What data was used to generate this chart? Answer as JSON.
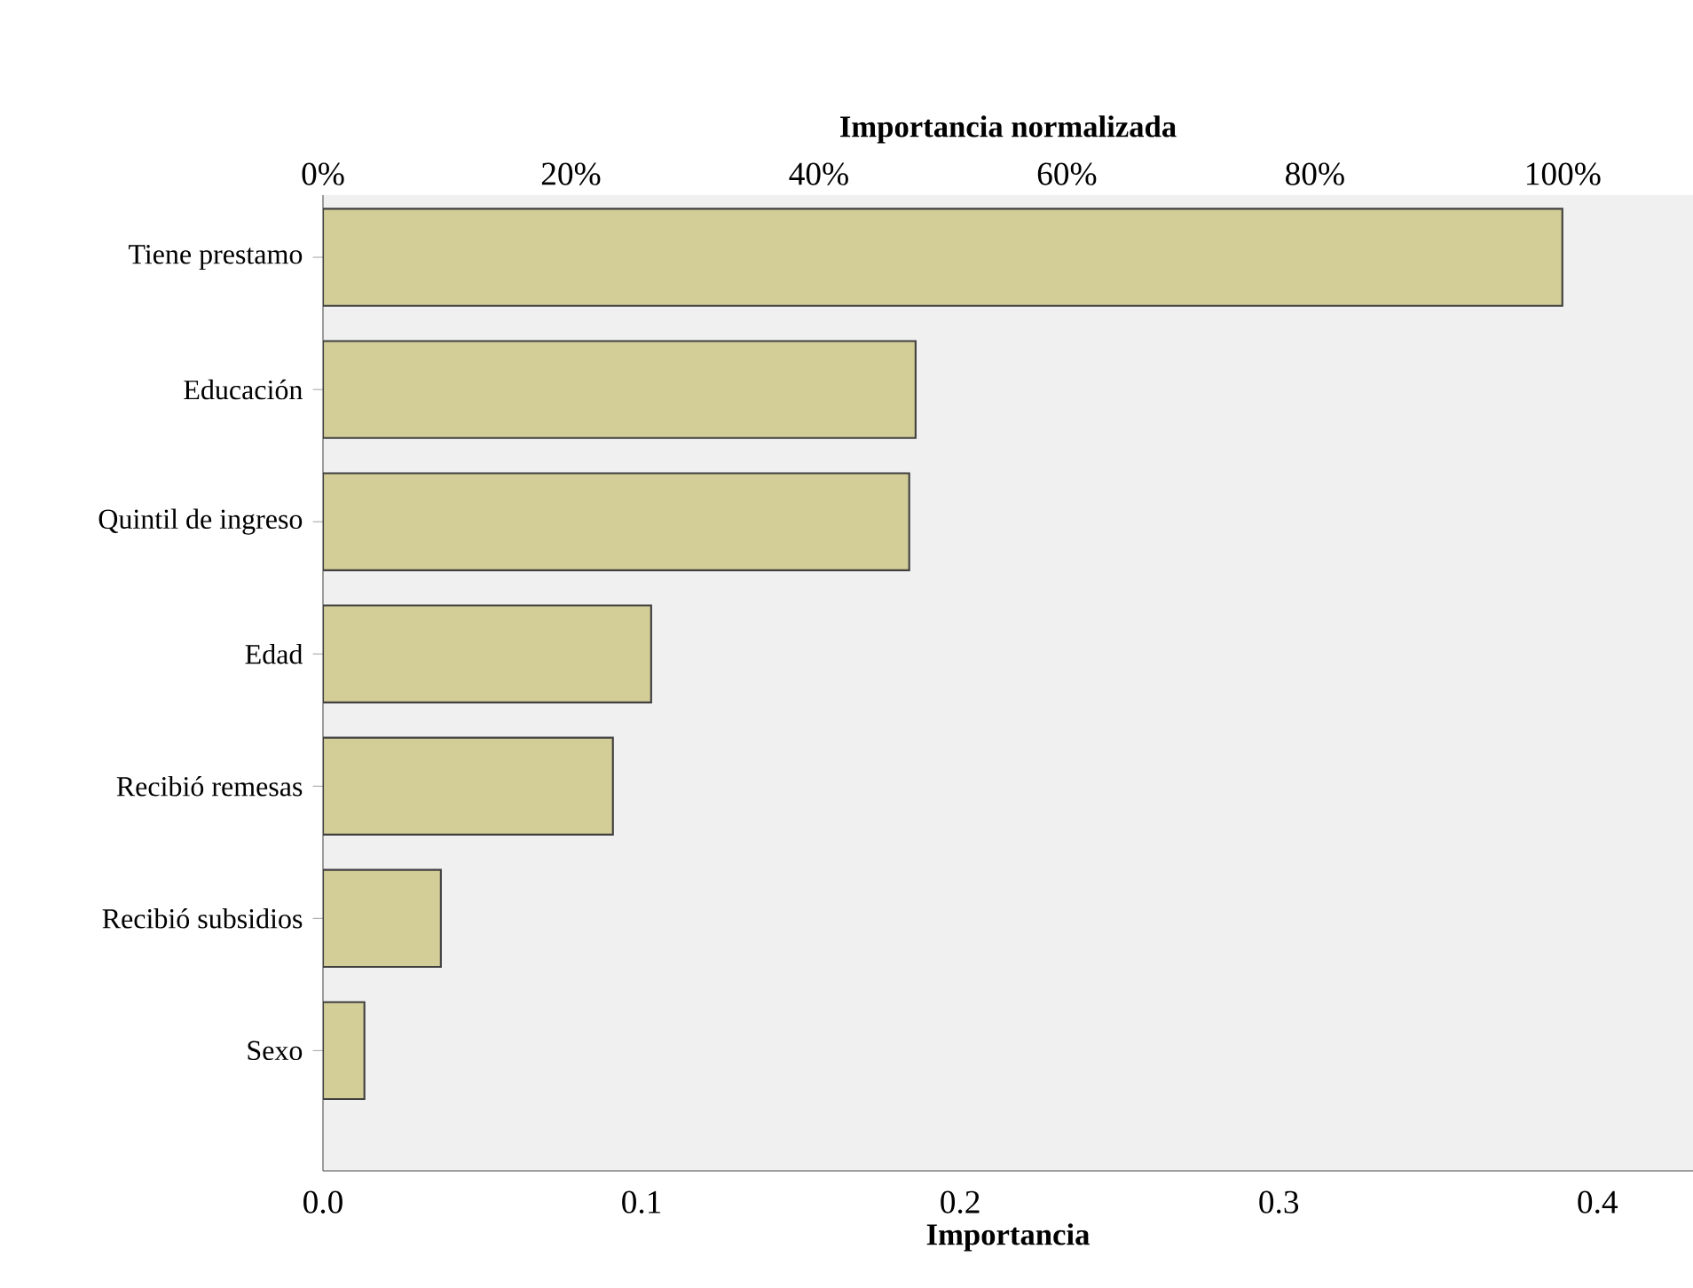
{
  "chart_data": {
    "type": "bar",
    "orientation": "horizontal",
    "categories": [
      "Tiene prestamo",
      "Educación",
      "Quintil de ingreso",
      "Edad",
      "Recibió remesas",
      "Recibió subsidios",
      "Sexo"
    ],
    "values": [
      0.389,
      0.186,
      0.184,
      0.103,
      0.091,
      0.037,
      0.013
    ],
    "color": "#d3cd97",
    "xlabel": "Importancia",
    "xlim": [
      0,
      0.43
    ],
    "xticks": [
      {
        "value": 0,
        "label": "0.0"
      },
      0.1,
      0.2,
      0.3,
      0.4
    ],
    "x2label": "Importancia normalizada",
    "x2lim": [
      0,
      110.5
    ],
    "x2ticks": [
      {
        "value": 0,
        "label": "0%"
      },
      {
        "value": 20,
        "label": "20%"
      },
      {
        "value": 40,
        "label": "40%"
      },
      {
        "value": 60,
        "label": "60%"
      },
      {
        "value": 80,
        "label": "80%"
      },
      {
        "value": 100,
        "label": "100%"
      }
    ],
    "grid": false
  }
}
